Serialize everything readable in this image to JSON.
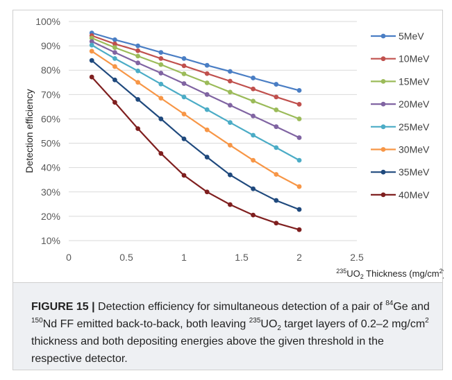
{
  "chart_data": {
    "type": "line",
    "title": "",
    "ylabel": "Detection efficiency",
    "xlabel": {
      "sup": "235",
      "main": "UO",
      "sub": "2",
      "rest": " Thickness (mg/cm",
      "sup2": "2",
      "end": ")"
    },
    "xlim": [
      0,
      2.5
    ],
    "ylim": [
      0.1,
      1.0
    ],
    "x_ticks": [
      0,
      0.5,
      1,
      1.5,
      2,
      2.5
    ],
    "x_tick_labels": [
      "0",
      "0.5",
      "1",
      "1.5",
      "2",
      "2.5"
    ],
    "y_ticks": [
      0.1,
      0.2,
      0.3,
      0.4,
      0.5,
      0.6,
      0.7,
      0.8,
      0.9,
      1.0
    ],
    "y_tick_labels": [
      "10%",
      "20%",
      "30%",
      "40%",
      "50%",
      "60%",
      "70%",
      "80%",
      "90%",
      "100%"
    ],
    "grid": "horizontal",
    "legend_position": "right",
    "x": [
      0.2,
      0.4,
      0.6,
      0.8,
      1.0,
      1.2,
      1.4,
      1.6,
      1.8,
      2.0
    ],
    "series": [
      {
        "name": "5MeV",
        "color": "#4a7ec4",
        "values": [
          0.953,
          0.925,
          0.9,
          0.873,
          0.848,
          0.82,
          0.795,
          0.768,
          0.742,
          0.717
        ]
      },
      {
        "name": "10MeV",
        "color": "#c0504d",
        "values": [
          0.942,
          0.908,
          0.88,
          0.848,
          0.818,
          0.786,
          0.755,
          0.723,
          0.69,
          0.66
        ]
      },
      {
        "name": "15MeV",
        "color": "#9bbb59",
        "values": [
          0.932,
          0.893,
          0.858,
          0.823,
          0.785,
          0.748,
          0.71,
          0.673,
          0.637,
          0.6
        ]
      },
      {
        "name": "20MeV",
        "color": "#8064a2",
        "values": [
          0.918,
          0.873,
          0.83,
          0.788,
          0.745,
          0.7,
          0.656,
          0.612,
          0.568,
          0.523
        ]
      },
      {
        "name": "25MeV",
        "color": "#4bacc6",
        "values": [
          0.903,
          0.848,
          0.797,
          0.743,
          0.69,
          0.638,
          0.585,
          0.533,
          0.482,
          0.43
        ]
      },
      {
        "name": "30MeV",
        "color": "#f79646",
        "values": [
          0.878,
          0.815,
          0.75,
          0.685,
          0.62,
          0.555,
          0.492,
          0.43,
          0.372,
          0.322
        ]
      },
      {
        "name": "35MeV",
        "color": "#1f497d",
        "values": [
          0.84,
          0.76,
          0.68,
          0.6,
          0.518,
          0.443,
          0.37,
          0.313,
          0.265,
          0.228
        ]
      },
      {
        "name": "40MeV",
        "color": "#7f1f1f",
        "values": [
          0.772,
          0.668,
          0.56,
          0.458,
          0.368,
          0.3,
          0.248,
          0.205,
          0.172,
          0.145
        ]
      }
    ]
  },
  "caption": {
    "label": "FIGURE 15 |",
    "parts": [
      {
        "t": " Detection efficiency for simultaneous detection of a pair of ",
        "s": ""
      },
      {
        "t": "84",
        "s": "sup"
      },
      {
        "t": "Ge and ",
        "s": ""
      },
      {
        "t": "150",
        "s": "sup"
      },
      {
        "t": "Nd FF emitted back-to-back, both leaving ",
        "s": ""
      },
      {
        "t": "235",
        "s": "sup"
      },
      {
        "t": "UO",
        "s": ""
      },
      {
        "t": "2",
        "s": "sub"
      },
      {
        "t": " target layers of 0.2–2 mg/cm",
        "s": ""
      },
      {
        "t": "2",
        "s": "sup"
      },
      {
        "t": " thickness and both depositing energies above the given threshold in the respective detector.",
        "s": ""
      }
    ]
  }
}
